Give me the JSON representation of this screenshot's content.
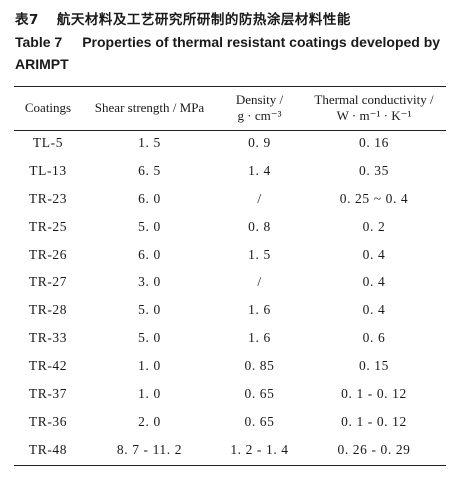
{
  "caption": {
    "cn_number": "表7",
    "cn_title": "航天材料及工艺研究所研制的防热涂层材料性能",
    "en_number": "Table 7",
    "en_title": "Properties of thermal resistant coatings developed by ARIMPT"
  },
  "table": {
    "headers": {
      "coatings": "Coatings",
      "shear": "Shear strength / MPa",
      "density_1": "Density /",
      "density_2": "g · cm⁻³",
      "thermal_1": "Thermal conductivity /",
      "thermal_2": "W · m⁻¹ · K⁻¹"
    },
    "rows": [
      {
        "coating": "TL-5",
        "shear": "1. 5",
        "density": "0. 9",
        "thermal": "0. 16"
      },
      {
        "coating": "TL-13",
        "shear": "6. 5",
        "density": "1. 4",
        "thermal": "0. 35"
      },
      {
        "coating": "TR-23",
        "shear": "6. 0",
        "density": "/",
        "thermal": "0. 25 ~ 0. 4"
      },
      {
        "coating": "TR-25",
        "shear": "5. 0",
        "density": "0. 8",
        "thermal": "0. 2"
      },
      {
        "coating": "TR-26",
        "shear": "6. 0",
        "density": "1. 5",
        "thermal": "0. 4"
      },
      {
        "coating": "TR-27",
        "shear": "3. 0",
        "density": "/",
        "thermal": "0. 4"
      },
      {
        "coating": "TR-28",
        "shear": "5. 0",
        "density": "1. 6",
        "thermal": "0. 4"
      },
      {
        "coating": "TR-33",
        "shear": "5. 0",
        "density": "1. 6",
        "thermal": "0. 6"
      },
      {
        "coating": "TR-42",
        "shear": "1. 0",
        "density": "0. 85",
        "thermal": "0. 15"
      },
      {
        "coating": "TR-37",
        "shear": "1. 0",
        "density": "0. 65",
        "thermal": "0. 1 - 0. 12"
      },
      {
        "coating": "TR-36",
        "shear": "2. 0",
        "density": "0. 65",
        "thermal": "0. 1 - 0. 12"
      },
      {
        "coating": "TR-48",
        "shear": "8. 7 - 11. 2",
        "density": "1. 2 - 1. 4",
        "thermal": "0. 26 - 0. 29"
      }
    ]
  }
}
